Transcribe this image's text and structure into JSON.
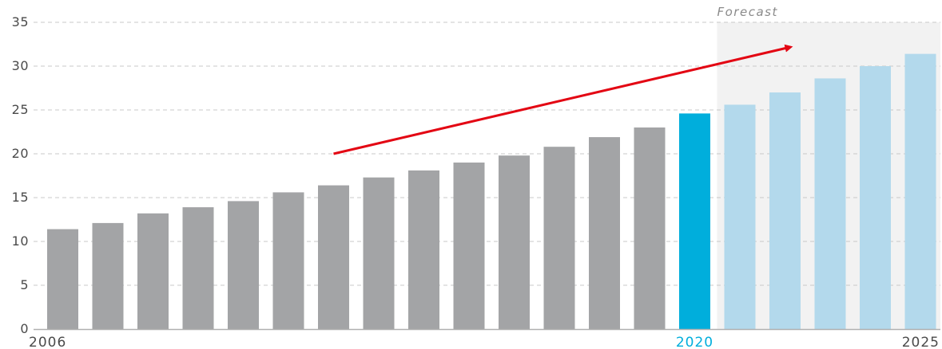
{
  "chart_data": {
    "type": "bar",
    "categories": [
      "2006",
      "2007",
      "2008",
      "2009",
      "2010",
      "2011",
      "2012",
      "2013",
      "2014",
      "2015",
      "2016",
      "2017",
      "2018",
      "2019",
      "2020",
      "2021",
      "2022",
      "2023",
      "2024",
      "2025"
    ],
    "values": [
      11.4,
      12.1,
      13.2,
      13.9,
      14.6,
      15.6,
      16.4,
      17.3,
      18.1,
      19.0,
      19.8,
      20.8,
      21.9,
      23.0,
      24.6,
      25.6,
      27.0,
      28.6,
      30.0,
      31.4
    ],
    "x_tick_labels": [
      {
        "category": "2006",
        "text": "2006",
        "color": "#4a4a4a"
      },
      {
        "category": "2020",
        "text": "2020",
        "color": "#00aedc"
      },
      {
        "category": "2025",
        "text": "2025",
        "color": "#4a4a4a"
      }
    ],
    "y_ticks": [
      "0",
      "5",
      "10",
      "15",
      "20",
      "25",
      "30",
      "35"
    ],
    "ylim": [
      0,
      35
    ],
    "grid": true,
    "forecast_region": {
      "label": "Forecast",
      "start": "2021",
      "end": "2025",
      "shade": "#f2f2f2"
    },
    "colors": {
      "historical": "#a3a4a6",
      "current": "#00aedc",
      "forecast": "#b3d9ec",
      "arrow": "#e30613",
      "grid": "#c8c8c8",
      "axis": "#b0b0b0"
    },
    "annotations": [
      {
        "type": "trend-arrow",
        "from": {
          "category": "2012",
          "value": 20
        },
        "to": {
          "category": "2022",
          "value": 32
        }
      }
    ]
  }
}
